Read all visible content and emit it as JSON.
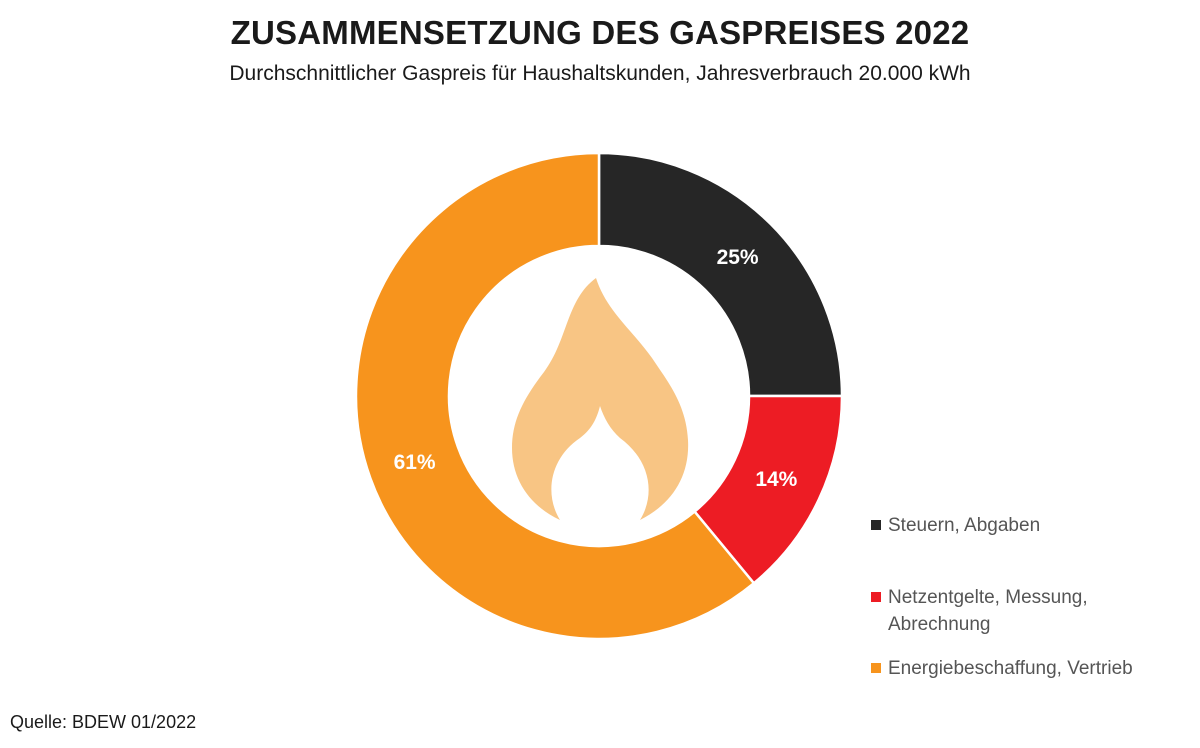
{
  "chart_data": {
    "type": "pie",
    "variant": "donut",
    "title": "ZUSAMMENSETZUNG DES GASPREISES 2022",
    "subtitle": "Durchschnittlicher Gaspreis für Haushaltskunden, Jahresverbrauch 20.000 kWh",
    "slices": [
      {
        "name": "Steuern, Abgaben",
        "value": 25,
        "label": "25%",
        "color": "#262626"
      },
      {
        "name": "Netzentgelte, Messung, Abrechnung",
        "value": 14,
        "label": "14%",
        "color": "#ed1c24"
      },
      {
        "name": "Energiebeschaffung, Vertrieb",
        "value": 61,
        "label": "61%",
        "color": "#f7941d"
      }
    ],
    "legend_position": "bottom-right",
    "center_icon": "flame-icon",
    "center_icon_color": "#f8c584",
    "source": "Quelle: BDEW 01/2022"
  }
}
